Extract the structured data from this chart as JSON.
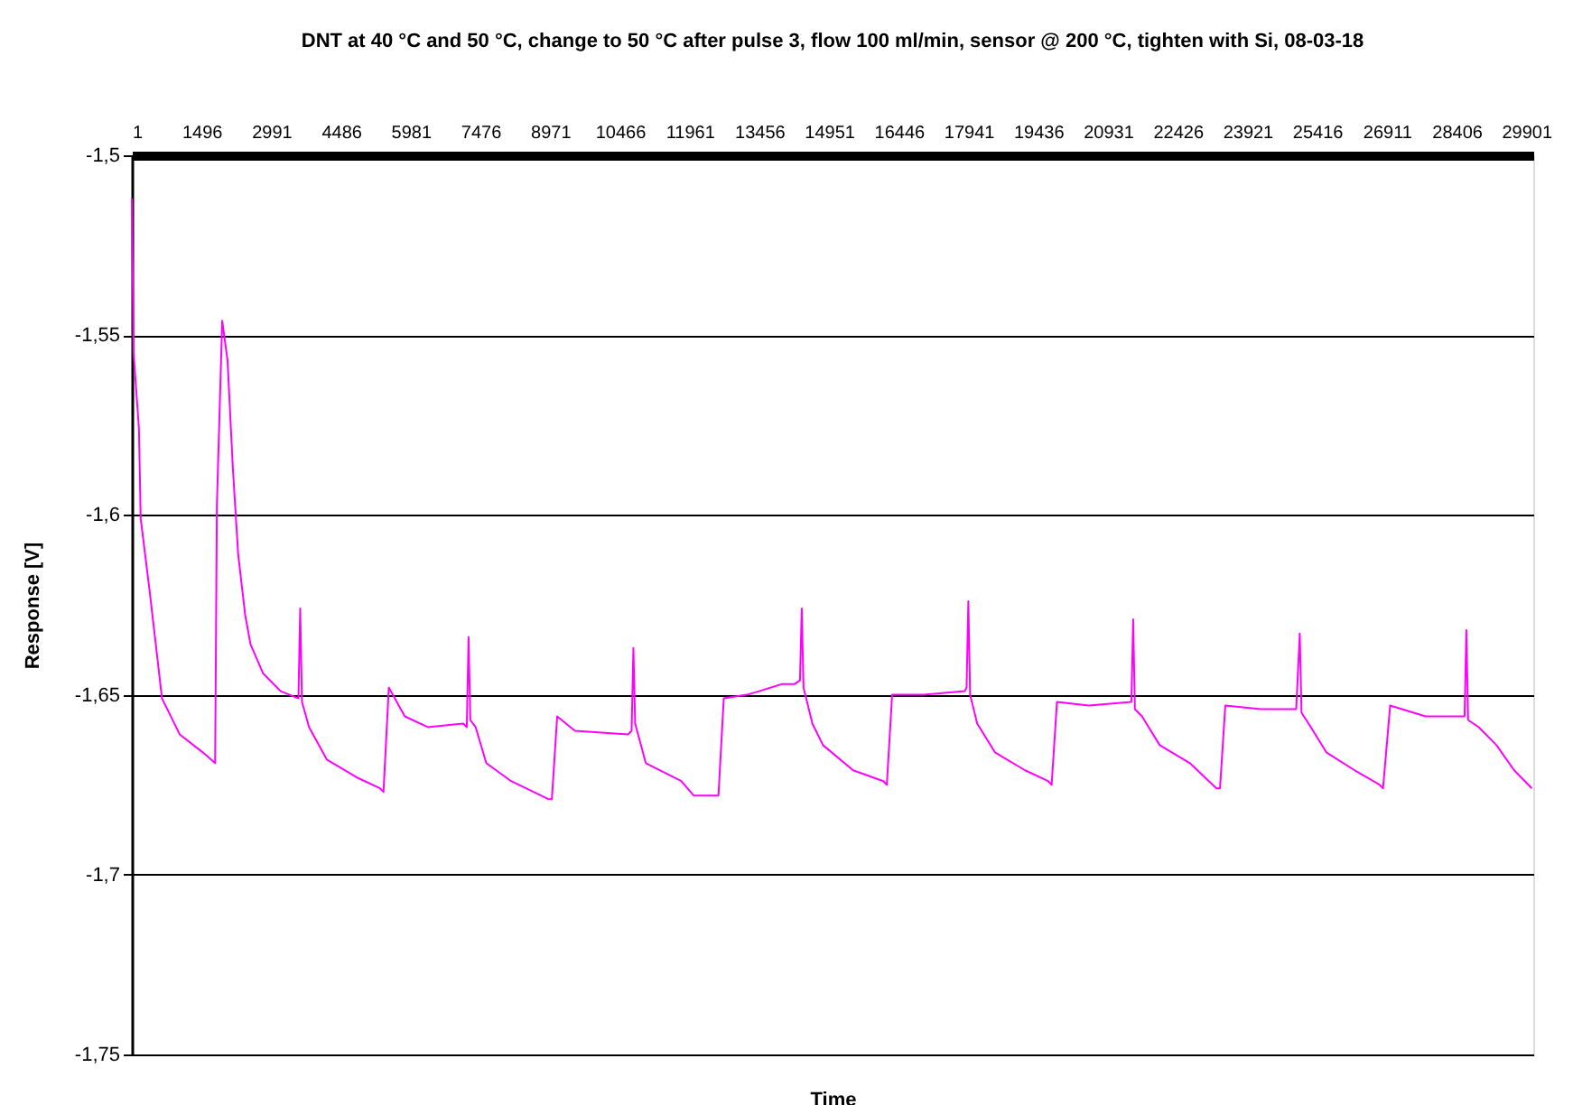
{
  "chart_data": {
    "type": "line",
    "title": "DNT at 40 °C and 50 °C, change to 50 °C after pulse 3, flow 100 ml/min, sensor @ 200 °C, tighten with Si, 08-03-18",
    "xlabel": "Time",
    "ylabel": "Response [V]",
    "x": [
      1,
      39,
      153,
      191,
      381,
      533,
      647,
      1027,
      1521,
      1787,
      1825,
      1939,
      2053,
      2167,
      2281,
      2433,
      2547,
      2813,
      3193,
      3573,
      3611,
      3649,
      3801,
      4181,
      4827,
      5321,
      5397,
      5511,
      5853,
      6347,
      7107,
      7183,
      7221,
      7259,
      7373,
      7601,
      8133,
      8931,
      9007,
      9121,
      9501,
      10641,
      10717,
      10755,
      10793,
      11021,
      11781,
      12047,
      12503,
      12579,
      12693,
      13187,
      13453,
      13947,
      14213,
      14327,
      14365,
      14403,
      14593,
      14821,
      15467,
      16113,
      16189,
      16303,
      16987,
      17861,
      17899,
      17937,
      17975,
      18127,
      18507,
      19153,
      19647,
      19723,
      19837,
      20521,
      21433,
      21471,
      21509,
      21661,
      22041,
      22687,
      23257,
      23333,
      23447,
      24207,
      24967,
      25043,
      25081,
      25233,
      25613,
      26221,
      26753,
      26829,
      26981,
      27741,
      28577,
      28615,
      28653,
      28881,
      29261,
      29641,
      30021
    ],
    "series": [
      {
        "color": "#ff00ff",
        "values": [
          -1.512,
          -1.555,
          -1.576,
          -1.601,
          -1.621,
          -1.638,
          -1.651,
          -1.661,
          -1.666,
          -1.669,
          -1.597,
          -1.546,
          -1.557,
          -1.587,
          -1.611,
          -1.628,
          -1.636,
          -1.644,
          -1.649,
          -1.651,
          -1.626,
          -1.652,
          -1.659,
          -1.668,
          -1.673,
          -1.676,
          -1.677,
          -1.648,
          -1.656,
          -1.659,
          -1.658,
          -1.659,
          -1.634,
          -1.657,
          -1.659,
          -1.669,
          -1.674,
          -1.679,
          -1.679,
          -1.656,
          -1.66,
          -1.661,
          -1.66,
          -1.637,
          -1.658,
          -1.669,
          -1.674,
          -1.678,
          -1.678,
          -1.678,
          -1.651,
          -1.65,
          -1.649,
          -1.647,
          -1.647,
          -1.646,
          -1.626,
          -1.648,
          -1.658,
          -1.664,
          -1.671,
          -1.674,
          -1.675,
          -1.65,
          -1.65,
          -1.649,
          -1.648,
          -1.624,
          -1.65,
          -1.658,
          -1.666,
          -1.671,
          -1.674,
          -1.675,
          -1.652,
          -1.653,
          -1.652,
          -1.629,
          -1.654,
          -1.656,
          -1.664,
          -1.669,
          -1.676,
          -1.676,
          -1.653,
          -1.654,
          -1.654,
          -1.633,
          -1.655,
          -1.658,
          -1.666,
          -1.671,
          -1.675,
          -1.676,
          -1.653,
          -1.656,
          -1.656,
          -1.632,
          -1.657,
          -1.659,
          -1.664,
          -1.671,
          -1.676
        ]
      }
    ],
    "xlim": [
      1,
      30050
    ],
    "xticks": [
      1,
      1496,
      2991,
      4486,
      5981,
      7476,
      8971,
      10466,
      11961,
      13456,
      14951,
      16446,
      17941,
      19436,
      20931,
      22426,
      23921,
      25416,
      26911,
      28406,
      29901
    ],
    "ylim": [
      -1.75,
      -1.5
    ],
    "yticks": [
      {
        "value": -1.5,
        "label": "-1,5"
      },
      {
        "value": -1.55,
        "label": "-1,55"
      },
      {
        "value": -1.6,
        "label": "-1,6"
      },
      {
        "value": -1.65,
        "label": "-1,65"
      },
      {
        "value": -1.7,
        "label": "-1,7"
      },
      {
        "value": -1.75,
        "label": "-1,75"
      }
    ],
    "grid": "y",
    "legend": false,
    "marker": "none",
    "line_style": "solid"
  }
}
